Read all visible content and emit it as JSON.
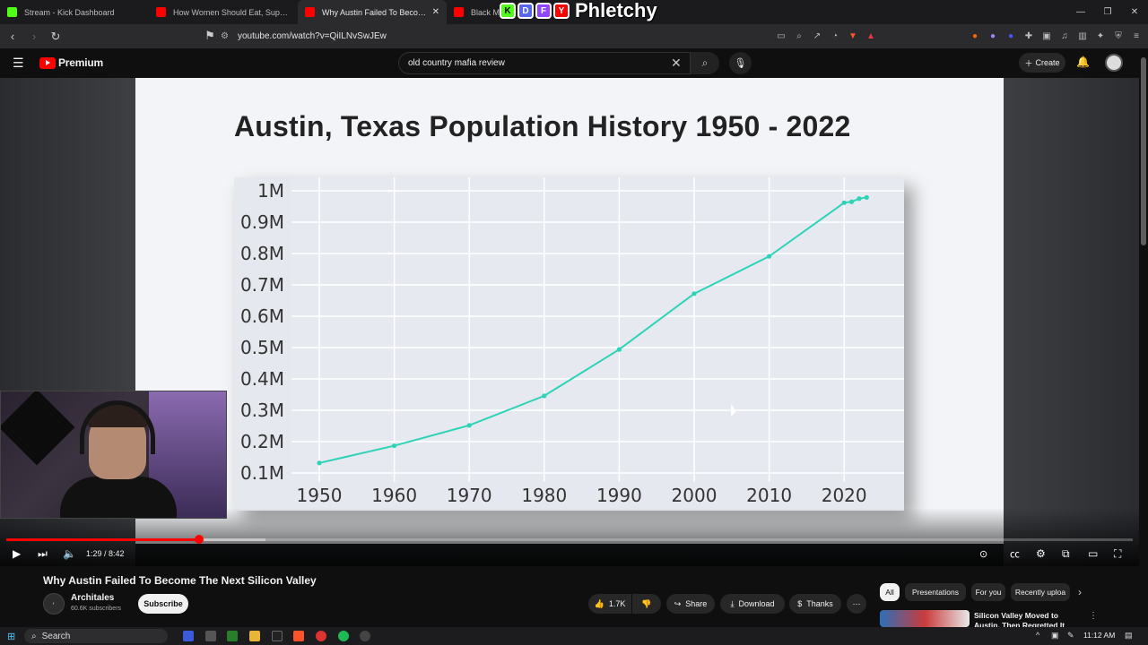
{
  "browser": {
    "tabs": [
      {
        "title": "Stream - Kick Dashboard",
        "color": "#53fc18"
      },
      {
        "title": "How Women Should Eat, Supplement",
        "color": "#ff0000"
      },
      {
        "title": "Why Austin Failed To Become Th",
        "color": "#ff0000",
        "active": true
      },
      {
        "title": "Black Myth",
        "color": "#ff0000"
      }
    ],
    "overlay_logo_text": "Phletchy",
    "overlay_letters": [
      "K",
      "D",
      "F",
      "Y"
    ],
    "url": "youtube.com/watch?v=QiILNvSwJEw"
  },
  "youtube": {
    "logo_text": "Premium",
    "search_value": "old country mafia review",
    "create_label": "Create"
  },
  "slide": {
    "title": "Austin, Texas Population History 1950 - 2022"
  },
  "chart_data": {
    "type": "line",
    "title": "Austin, Texas Population History 1950 - 2022",
    "xlabel": "",
    "ylabel": "",
    "x_ticks": [
      "1950",
      "1960",
      "1970",
      "1980",
      "1990",
      "2000",
      "2010",
      "2020"
    ],
    "y_ticks": [
      "0.1M",
      "0.2M",
      "0.3M",
      "0.4M",
      "0.5M",
      "0.6M",
      "0.7M",
      "0.8M",
      "0.9M",
      "1M"
    ],
    "xlim": [
      1950,
      2022
    ],
    "ylim": [
      0.1,
      1.0
    ],
    "color": "#2ed3b7",
    "grid": true,
    "points": [
      {
        "x": 1950,
        "y": 0.132
      },
      {
        "x": 1960,
        "y": 0.187
      },
      {
        "x": 1970,
        "y": 0.252
      },
      {
        "x": 1980,
        "y": 0.346
      },
      {
        "x": 1990,
        "y": 0.494
      },
      {
        "x": 2000,
        "y": 0.672
      },
      {
        "x": 2010,
        "y": 0.791
      },
      {
        "x": 2020,
        "y": 0.962
      },
      {
        "x": 2021,
        "y": 0.965
      },
      {
        "x": 2022,
        "y": 0.975
      },
      {
        "x": 2023,
        "y": 0.979
      }
    ]
  },
  "player": {
    "current_time": "1:29",
    "duration": "8:42",
    "progress": 0.171,
    "buffered": 0.23
  },
  "video": {
    "title": "Why Austin Failed To Become The Next Silicon Valley",
    "channel": "Architales",
    "subscribers": "60.6K subscribers",
    "subscribe_label": "Subscribe",
    "likes": "1.7K",
    "share_label": "Share",
    "download_label": "Download",
    "thanks_label": "Thanks"
  },
  "chips": [
    "All",
    "Presentations",
    "For you",
    "Recently uploa"
  ],
  "recommendation": {
    "title": "Silicon Valley Moved to Austin. Then Regretted It"
  },
  "taskbar": {
    "search_label": "Search",
    "clock": "11:12 AM"
  }
}
